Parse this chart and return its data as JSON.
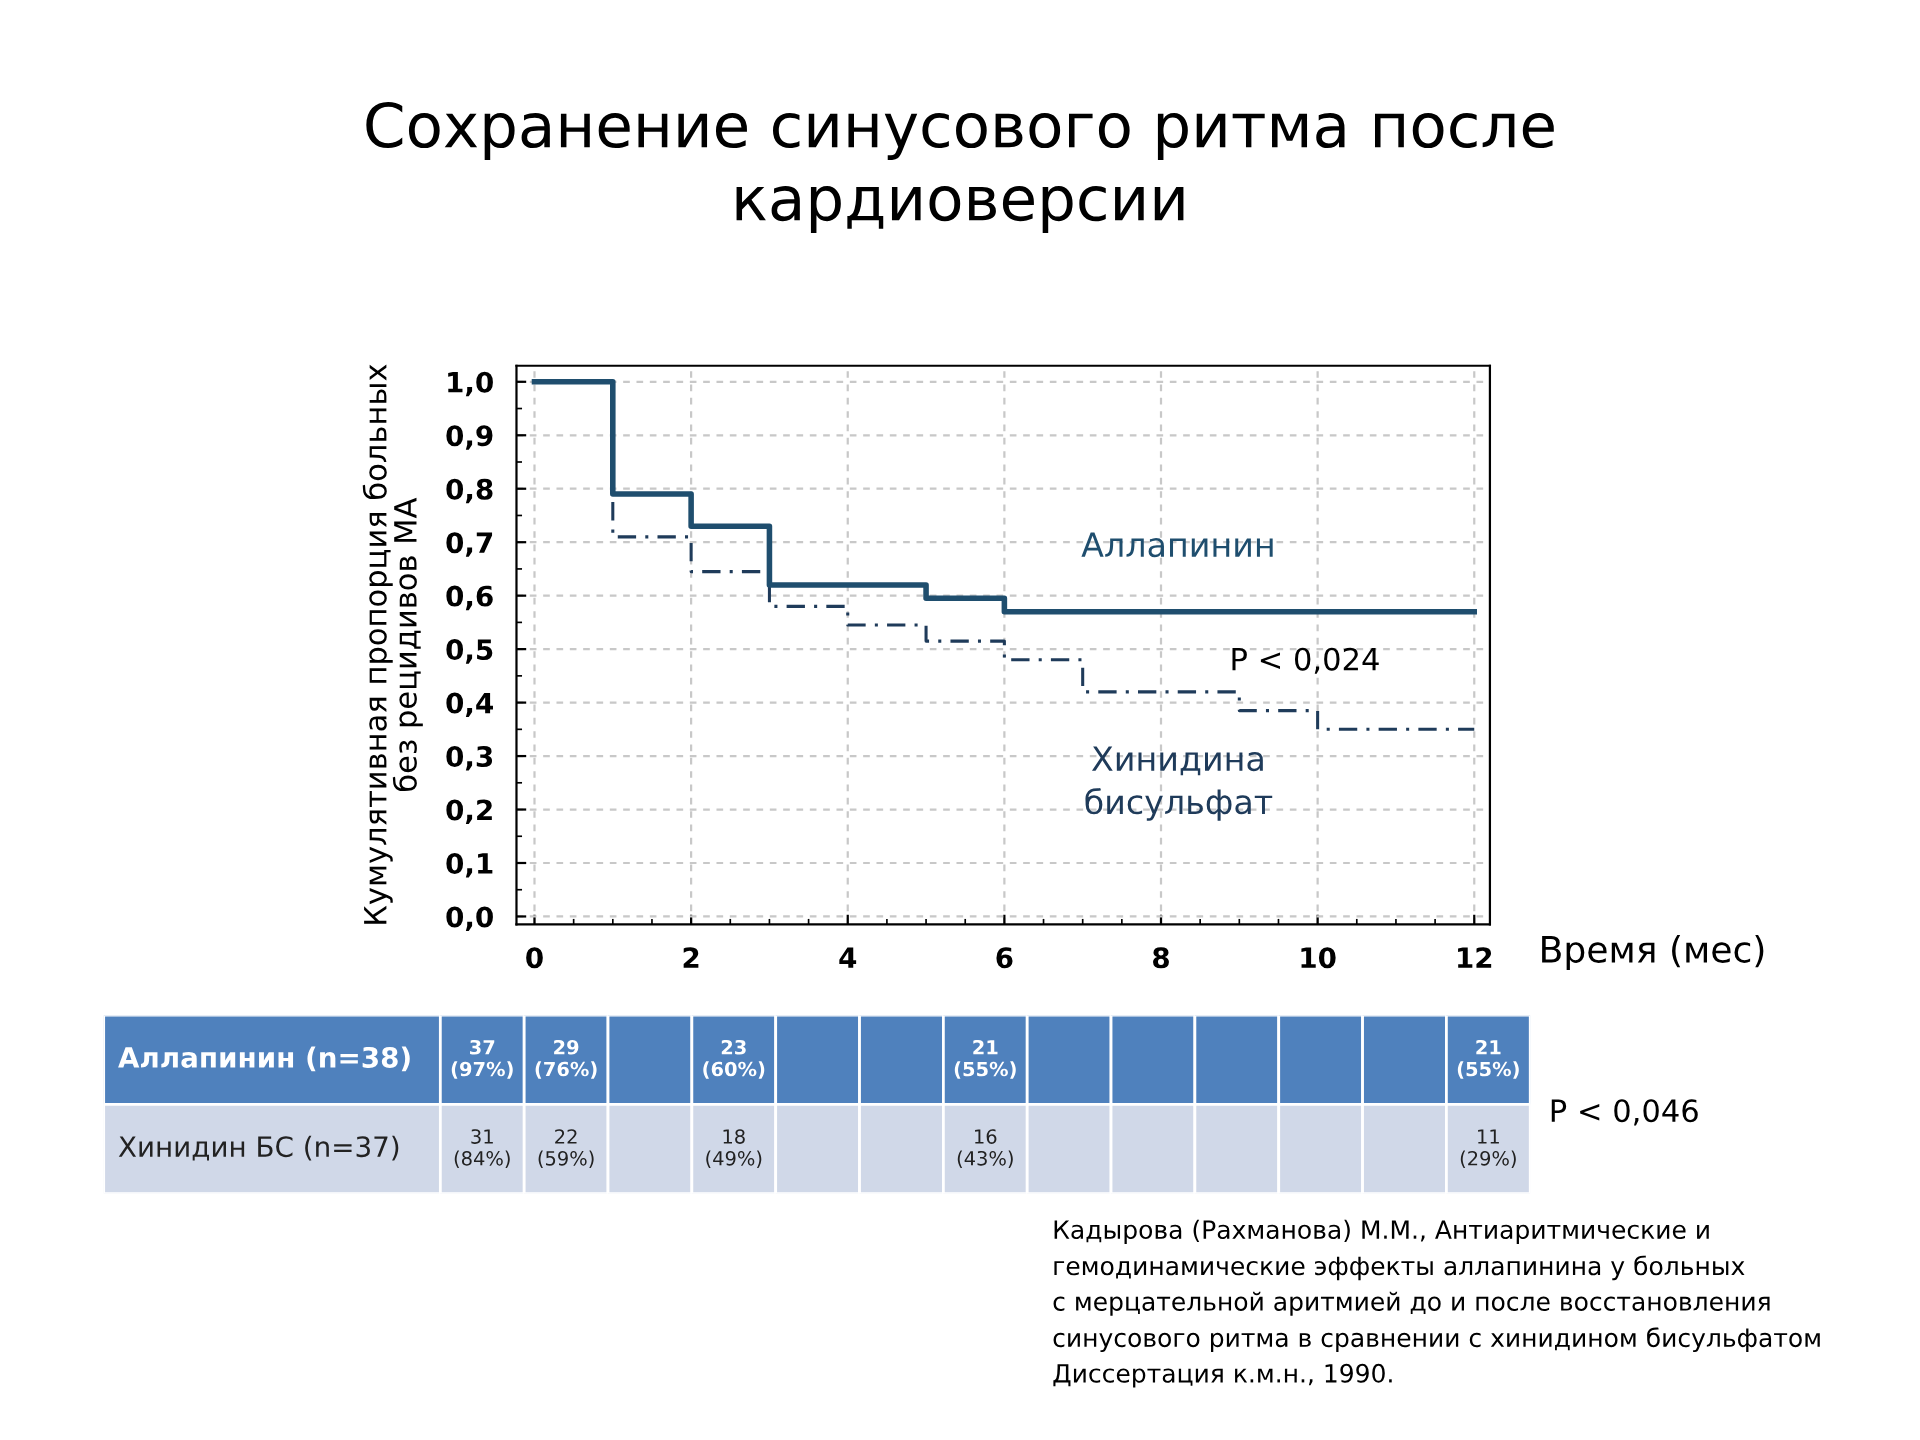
{
  "chart_data": [
    {
      "type": "step",
      "title": "Сохранение синусового ритма после\nкардиоверсии",
      "xlabel": "Время (мес)",
      "ylabel": "Кумулятивная пропорция больных\nбез рецидивов МА",
      "series": [
        {
          "name": "Аллапинин",
          "color": "#1f4e6e",
          "line_style": "solid",
          "x": [
            0,
            1,
            2,
            3,
            5,
            6,
            12
          ],
          "values": [
            1.0,
            0.79,
            0.73,
            0.62,
            0.595,
            0.57,
            0.57
          ]
        },
        {
          "name": "Хинидина\nбисульфат",
          "color": "#1f3b5a",
          "line_style": "dashed",
          "x": [
            0,
            1,
            2,
            3,
            4,
            5,
            6,
            7,
            9,
            10,
            12
          ],
          "values": [
            1.0,
            0.71,
            0.645,
            0.58,
            0.545,
            0.515,
            0.48,
            0.42,
            0.385,
            0.35,
            0.35
          ]
        }
      ],
      "xlim": [
        -0.23,
        12.2
      ],
      "ylim": [
        -0.015,
        1.03
      ],
      "xticks": [
        0,
        2,
        4,
        6,
        8,
        10,
        12
      ],
      "yticks": [
        {
          "value": 0.0,
          "label": "0,0"
        },
        {
          "value": 0.1,
          "label": "0,1"
        },
        {
          "value": 0.2,
          "label": "0,2"
        },
        {
          "value": 0.3,
          "label": "0,3"
        },
        {
          "value": 0.4,
          "label": "0,4"
        },
        {
          "value": 0.5,
          "label": "0,5"
        },
        {
          "value": 0.6,
          "label": "0,6"
        },
        {
          "value": 0.7,
          "label": "0,7"
        },
        {
          "value": 0.8,
          "label": "0,8"
        },
        {
          "value": 0.9,
          "label": "0,9"
        },
        {
          "value": 1.0,
          "label": "1,0"
        }
      ],
      "grid": true,
      "legend": false,
      "annotations": [
        "P < 0,024"
      ]
    },
    {
      "type": "other",
      "y_categories": [
        "Аллапинин (n=38)",
        "Хинидин БС (n=37)"
      ],
      "cell_labels": [
        [
          "37\n(97%)",
          "29\n(76%)",
          null,
          "23\n(60%)",
          null,
          null,
          "21\n(55%)",
          null,
          null,
          null,
          null,
          null,
          "21\n(55%)"
        ],
        [
          "31\n(84%)",
          "22\n(59%)",
          null,
          "18\n(49%)",
          null,
          null,
          "16\n(43%)",
          null,
          null,
          null,
          null,
          null,
          "11\n(29%)"
        ]
      ],
      "annotations": [
        "P < 0,046",
        "Кадырова (Рахманова) М.М., Антиаритмические и\nгемодинамические эффекты аллапинина у больных\nс мерцательной аритмией до и после восстановления\nсинусового ритма в сравнении с хинидином бисульфатом\nДиссертация к.м.н., 1990."
      ]
    }
  ]
}
